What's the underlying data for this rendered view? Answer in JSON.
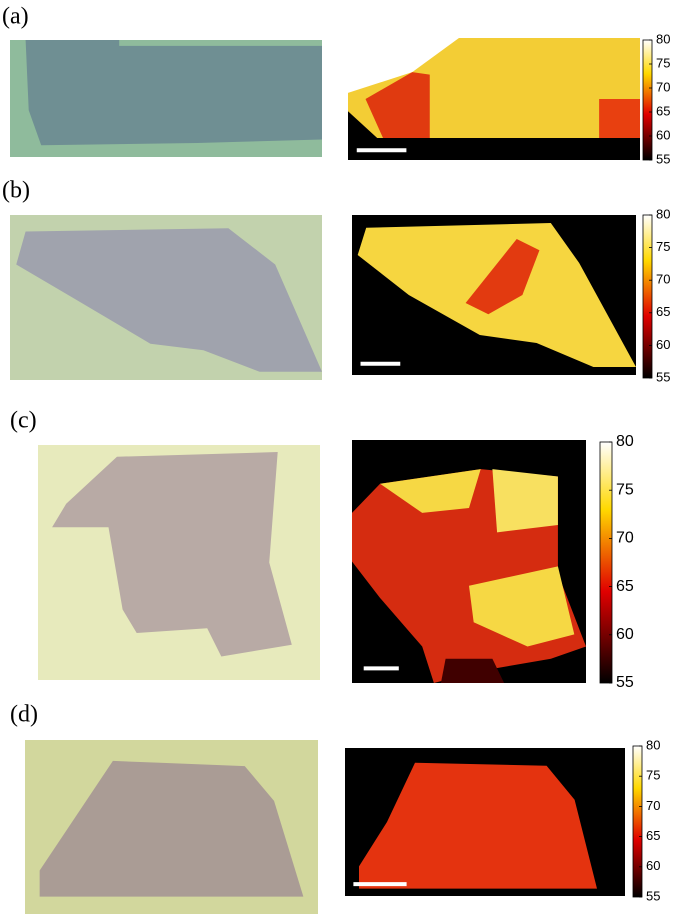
{
  "panels": [
    {
      "label": "(a)",
      "colorbar": {
        "lim": [
          55,
          80
        ],
        "ticks": [
          55,
          60,
          65,
          70,
          75,
          80
        ]
      }
    },
    {
      "label": "(b)",
      "colorbar": {
        "lim": [
          55,
          80
        ],
        "ticks": [
          55,
          60,
          65,
          70,
          75,
          80
        ]
      }
    },
    {
      "label": "(c)",
      "colorbar": {
        "lim": [
          55,
          80
        ],
        "ticks": [
          55,
          60,
          65,
          70,
          75,
          80
        ]
      }
    },
    {
      "label": "(d)",
      "colorbar": {
        "lim": [
          55,
          80
        ],
        "ticks": [
          55,
          60,
          65,
          70,
          75,
          80
        ]
      }
    }
  ]
}
